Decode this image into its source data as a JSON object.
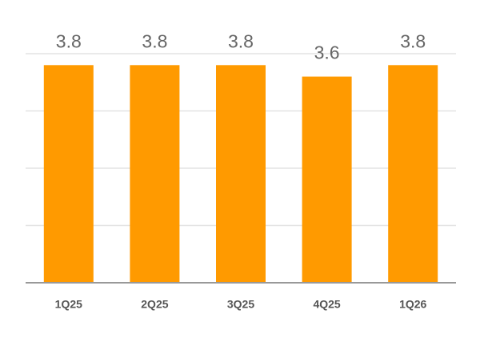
{
  "chart_data": {
    "type": "bar",
    "categories": [
      "1Q25",
      "2Q25",
      "3Q25",
      "4Q25",
      "1Q26"
    ],
    "values": [
      3.8,
      3.8,
      3.8,
      3.6,
      3.8
    ],
    "color": "#ff9a00",
    "ylim": [
      0,
      4
    ],
    "yticks": [
      1,
      2,
      3,
      4
    ],
    "grid": true
  }
}
